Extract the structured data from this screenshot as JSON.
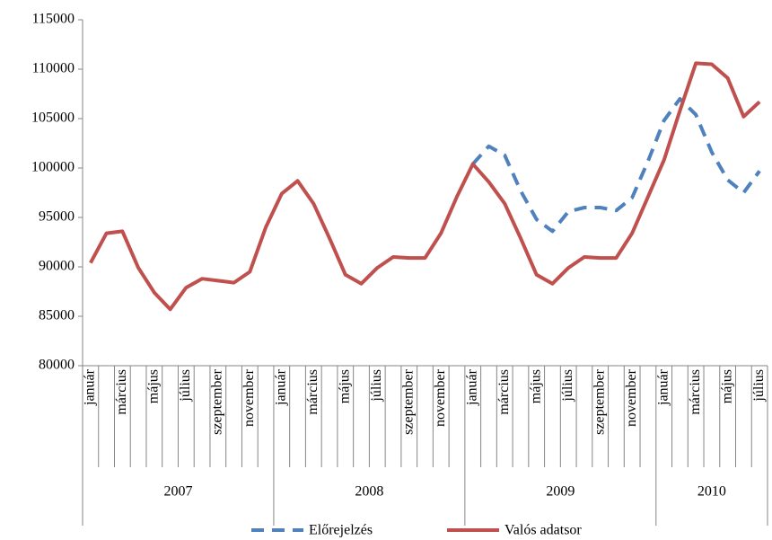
{
  "chart_data": {
    "type": "line",
    "categories": [
      "január",
      null,
      "március",
      null,
      "május",
      null,
      "július",
      null,
      "szeptember",
      null,
      "november",
      null,
      "január",
      null,
      "március",
      null,
      "május",
      null,
      "július",
      null,
      "szeptember",
      null,
      "november",
      null,
      "január",
      null,
      "március",
      null,
      "május",
      null,
      "július",
      null,
      "szeptember",
      null,
      "november",
      null,
      "január",
      null,
      "március",
      null,
      "május",
      null,
      "július"
    ],
    "year_groups": [
      {
        "label": "2007",
        "span": 12
      },
      {
        "label": "2008",
        "span": 12
      },
      {
        "label": "2009",
        "span": 12
      },
      {
        "label": "2010",
        "span": 7
      }
    ],
    "series": [
      {
        "name": "Előrejelzés",
        "color": "#4f81bd",
        "dashed": true,
        "values": [
          null,
          null,
          null,
          null,
          null,
          null,
          null,
          null,
          null,
          null,
          null,
          null,
          null,
          null,
          null,
          null,
          null,
          null,
          null,
          null,
          null,
          null,
          null,
          null,
          100400,
          102200,
          101300,
          97700,
          94800,
          93600,
          95600,
          96000,
          96000,
          95700,
          97000,
          100700,
          104800,
          107000,
          105400,
          101600,
          98800,
          97500,
          99700
        ]
      },
      {
        "name": "Valós adatsor",
        "color": "#c0504d",
        "dashed": false,
        "values": [
          90400,
          93400,
          93600,
          89900,
          87400,
          85700,
          87900,
          88800,
          88600,
          88400,
          89500,
          94000,
          97400,
          98700,
          96400,
          92900,
          89200,
          88300,
          89900,
          91000,
          90900,
          90900,
          93400,
          97100,
          100400,
          98600,
          96400,
          92900,
          89200,
          88300,
          89900,
          91000,
          90900,
          90900,
          93400,
          97100,
          100800,
          105800,
          110600,
          110500,
          109100,
          105200,
          106700
        ]
      }
    ],
    "ylim": [
      80000,
      115000
    ],
    "yticks": [
      80000,
      85000,
      90000,
      95000,
      100000,
      105000,
      110000,
      115000
    ],
    "legend": "bottom"
  }
}
